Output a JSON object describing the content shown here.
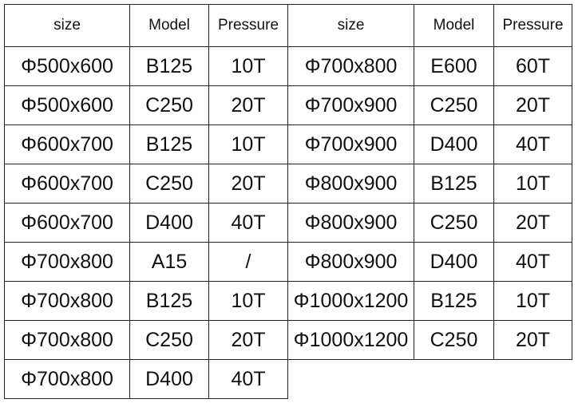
{
  "table": {
    "header": [
      "size",
      "Model",
      "Pressure",
      "size",
      "Model",
      "Pressure"
    ],
    "rows": [
      [
        "Φ500x600",
        "B125",
        "10T",
        "Φ700x800",
        "E600",
        "60T"
      ],
      [
        "Φ500x600",
        "C250",
        "20T",
        "Φ700x900",
        "C250",
        "20T"
      ],
      [
        "Φ600x700",
        "B125",
        "10T",
        "Φ700x900",
        "D400",
        "40T"
      ],
      [
        "Φ600x700",
        "C250",
        "20T",
        "Φ800x900",
        "B125",
        "10T"
      ],
      [
        "Φ600x700",
        "D400",
        "40T",
        "Φ800x900",
        "C250",
        "20T"
      ],
      [
        "Φ700x800",
        "A15",
        "/",
        "Φ800x900",
        "D400",
        "40T"
      ],
      [
        "Φ700x800",
        "B125",
        "10T",
        "Φ1000x1200",
        "B125",
        "10T"
      ],
      [
        "Φ700x800",
        "C250",
        "20T",
        "Φ1000x1200",
        "C250",
        "20T"
      ],
      [
        "Φ700x800",
        "D400",
        "40T"
      ]
    ]
  }
}
